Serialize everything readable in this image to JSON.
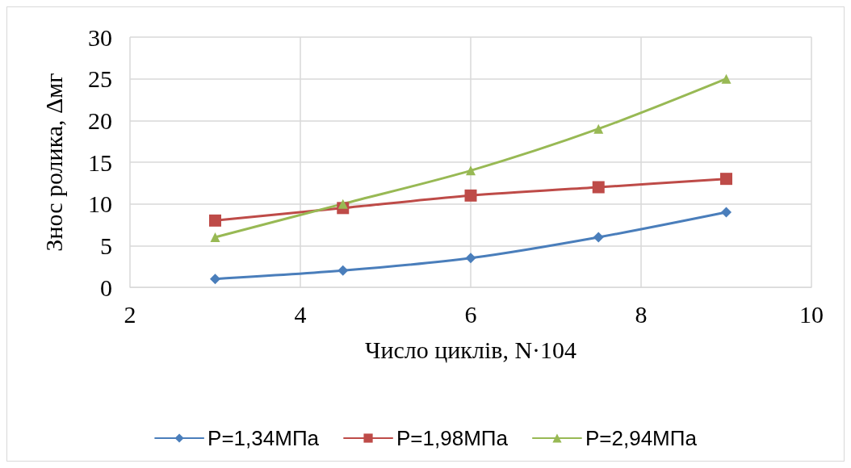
{
  "chart_data": {
    "type": "line",
    "xlabel": "Число циклів, N·104",
    "ylabel": "Знос ролика, Δмг",
    "x": [
      3,
      4.5,
      6,
      7.5,
      9
    ],
    "series": [
      {
        "name": "P=1,34МПа",
        "color": "#4a7ebb",
        "marker": "diamond",
        "values": [
          1,
          2,
          3.5,
          6,
          9
        ]
      },
      {
        "name": "P=1,98МПа",
        "color": "#be4b48",
        "marker": "square",
        "values": [
          8,
          9.5,
          11,
          12,
          13
        ]
      },
      {
        "name": "P=2,94МПа",
        "color": "#98b954",
        "marker": "triangle",
        "values": [
          6,
          10,
          14,
          19,
          25
        ]
      }
    ],
    "xlim": [
      2,
      10
    ],
    "xticks": [
      2,
      4,
      6,
      8,
      10
    ],
    "ylim": [
      0,
      30
    ],
    "yticks": [
      0,
      5,
      10,
      15,
      20,
      25,
      30
    ],
    "grid": true,
    "legend": "bottom",
    "line_style": "solid"
  }
}
